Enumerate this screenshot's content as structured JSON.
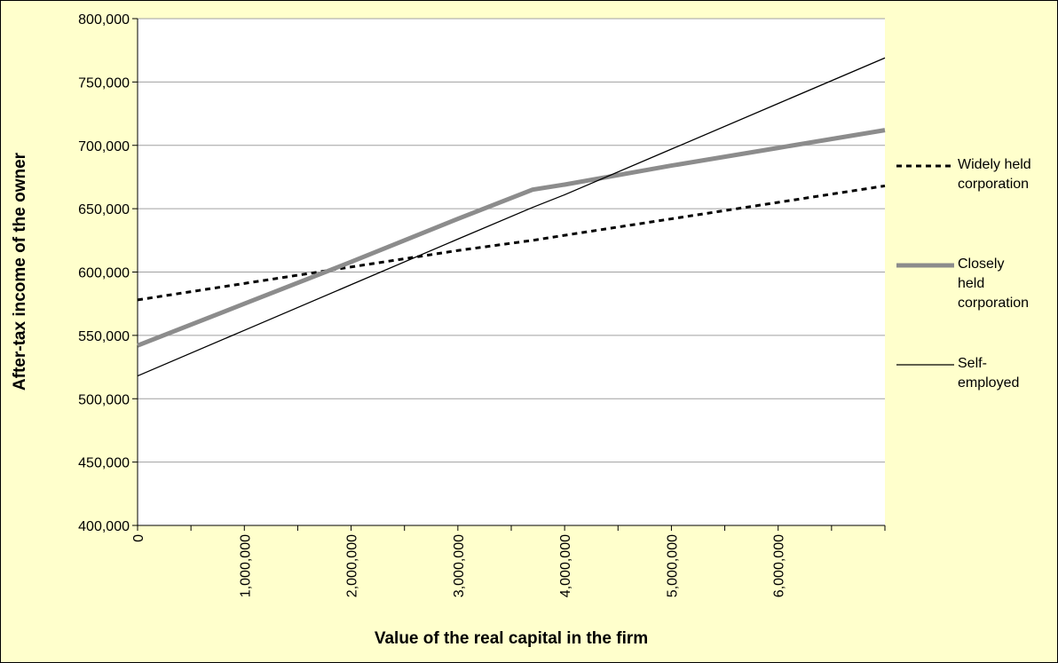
{
  "chart_data": {
    "type": "line",
    "x_label": "Value of the real capital in the firm",
    "y_label": "After-tax income of the owner",
    "x": [
      0,
      1000000,
      2000000,
      3000000,
      3700000,
      4000000,
      5000000,
      6000000,
      7000000
    ],
    "series": [
      {
        "name": "Widely held corporation",
        "color": "#000000",
        "dash": true,
        "values": [
          578000,
          591000,
          604000,
          617000,
          625000,
          629000,
          642000,
          655000,
          668000
        ]
      },
      {
        "name": "Closely held corporation",
        "color": "#8c8c8c",
        "dash": false,
        "values": [
          542000,
          575000,
          608000,
          642000,
          665000,
          669000,
          684000,
          698000,
          712000
        ]
      },
      {
        "name": "Self-employed",
        "color": "#000000",
        "dash": false,
        "values": [
          518000,
          554000,
          590000,
          626000,
          651000,
          661000,
          697000,
          733000,
          769000
        ]
      }
    ],
    "xlim": [
      0,
      7000000
    ],
    "xticks": [
      0,
      {
        "value": 1000000,
        "label": "1,000,000"
      },
      {
        "value": 2000000,
        "label": "2,000,000"
      },
      {
        "value": 3000000,
        "label": "3,000,000"
      },
      {
        "value": 4000000,
        "label": "4,000,000"
      },
      {
        "value": 5000000,
        "label": "5,000,000"
      },
      {
        "value": 6000000,
        "label": "6,000,000"
      }
    ],
    "xminorticks": [
      500000,
      1500000,
      2500000,
      3500000,
      4500000,
      5500000,
      6500000,
      7000000
    ],
    "ylim": [
      400000,
      800000
    ],
    "yticks": [
      {
        "value": 400000,
        "label": "400,000"
      },
      {
        "value": 450000,
        "label": "450,000"
      },
      {
        "value": 500000,
        "label": "500,000"
      },
      {
        "value": 550000,
        "label": "550,000"
      },
      {
        "value": 600000,
        "label": "600,000"
      },
      {
        "value": 650000,
        "label": "650,000"
      },
      {
        "value": 700000,
        "label": "700,000"
      },
      {
        "value": 750000,
        "label": "750,000"
      },
      {
        "value": 800000,
        "label": "800,000"
      }
    ],
    "grid": true,
    "legend": "right"
  }
}
